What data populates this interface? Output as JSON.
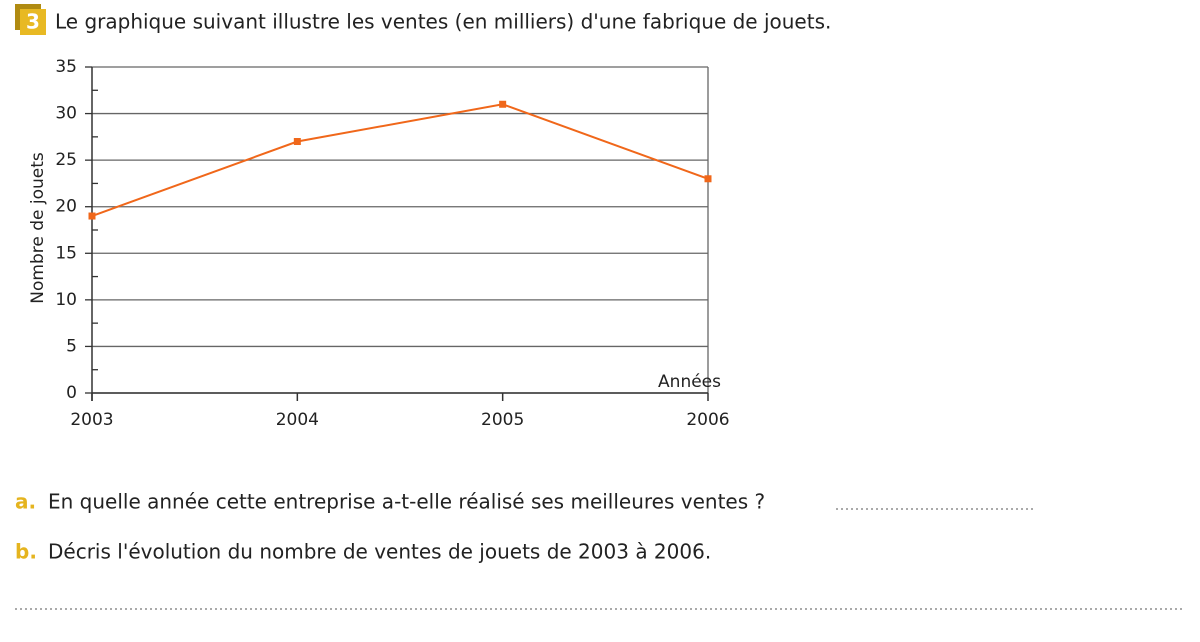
{
  "exercise": {
    "number": "3",
    "statement": "Le graphique suivant illustre les ventes (en milliers) d'une fabrique de jouets."
  },
  "chart_data": {
    "type": "line",
    "xlabel": "Années",
    "ylabel": "Nombre de jouets",
    "x": [
      2003,
      2004,
      2005,
      2006
    ],
    "values": [
      19,
      27,
      31,
      23
    ],
    "color": "#f0671a",
    "xlim": [
      2003,
      2006
    ],
    "xticks": [
      2003,
      2004,
      2005,
      2006
    ],
    "ylim": [
      0,
      35
    ],
    "yticks": [
      0,
      5,
      10,
      15,
      20,
      25,
      30,
      35
    ],
    "yminorticks": [
      2.5,
      7.5,
      12.5,
      17.5,
      22.5,
      27.5,
      32.5
    ],
    "grid": true
  },
  "questions": [
    {
      "label": "a.",
      "text": "En quelle année cette entreprise a-t-elle réalisé ses meilleures ventes ?"
    },
    {
      "label": "b.",
      "text": "Décris l'évolution du nombre de ventes de jouets de 2003 à 2006."
    }
  ]
}
